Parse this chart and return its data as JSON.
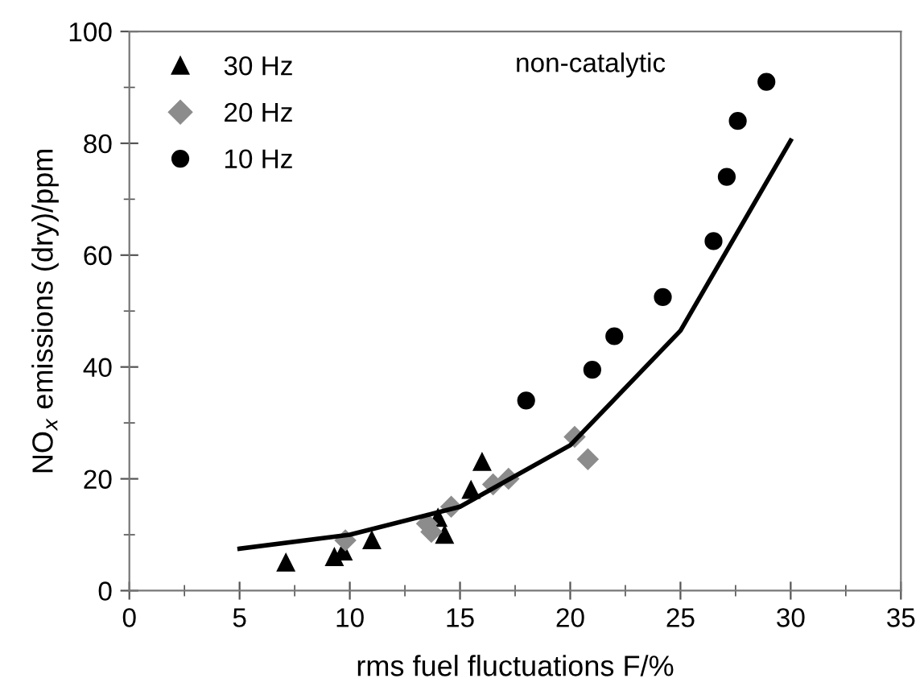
{
  "chart_data": {
    "type": "scatter",
    "xlabel": "rms fuel fluctuations F/%",
    "ylabel": "NO$_{x}$ emissions (dry)/ppm",
    "xlim": [
      0,
      35
    ],
    "xticks": [
      0,
      5,
      10,
      15,
      20,
      25,
      30,
      35
    ],
    "ylim": [
      0,
      100
    ],
    "yticks": [
      0,
      20,
      40,
      60,
      80,
      100
    ],
    "grid": false,
    "legend": "top left",
    "annotations": [
      "non-catalytic"
    ],
    "series": [
      {
        "name": "30 Hz",
        "color": "#000000",
        "marker": "triangle",
        "x": [
          7.1,
          9.3,
          9.7,
          11.0,
          14.0,
          14.3,
          15.5,
          16.0
        ],
        "values": [
          5,
          6,
          7,
          9,
          13,
          10,
          18,
          23
        ]
      },
      {
        "name": "20 Hz",
        "color": "#8c8c8c",
        "marker": "diamond",
        "x": [
          9.8,
          13.5,
          13.7,
          14.6,
          16.5,
          17.2,
          20.2,
          20.8
        ],
        "values": [
          9,
          12,
          10.5,
          15,
          19,
          20,
          27.5,
          23.5
        ]
      },
      {
        "name": "10 Hz",
        "color": "#000000",
        "marker": "circle",
        "x": [
          18.0,
          21.0,
          22.0,
          24.2,
          26.5,
          27.1,
          27.6,
          28.9
        ],
        "values": [
          34,
          39.5,
          45.5,
          52.5,
          62.5,
          74,
          84,
          91
        ]
      },
      {
        "type": "line",
        "color": "#000000",
        "marker": "none",
        "line_style": "solid",
        "x": [
          5,
          10,
          15,
          20,
          25,
          30
        ],
        "values": [
          7.5,
          10,
          15,
          26,
          46.5,
          80.5
        ]
      }
    ]
  }
}
